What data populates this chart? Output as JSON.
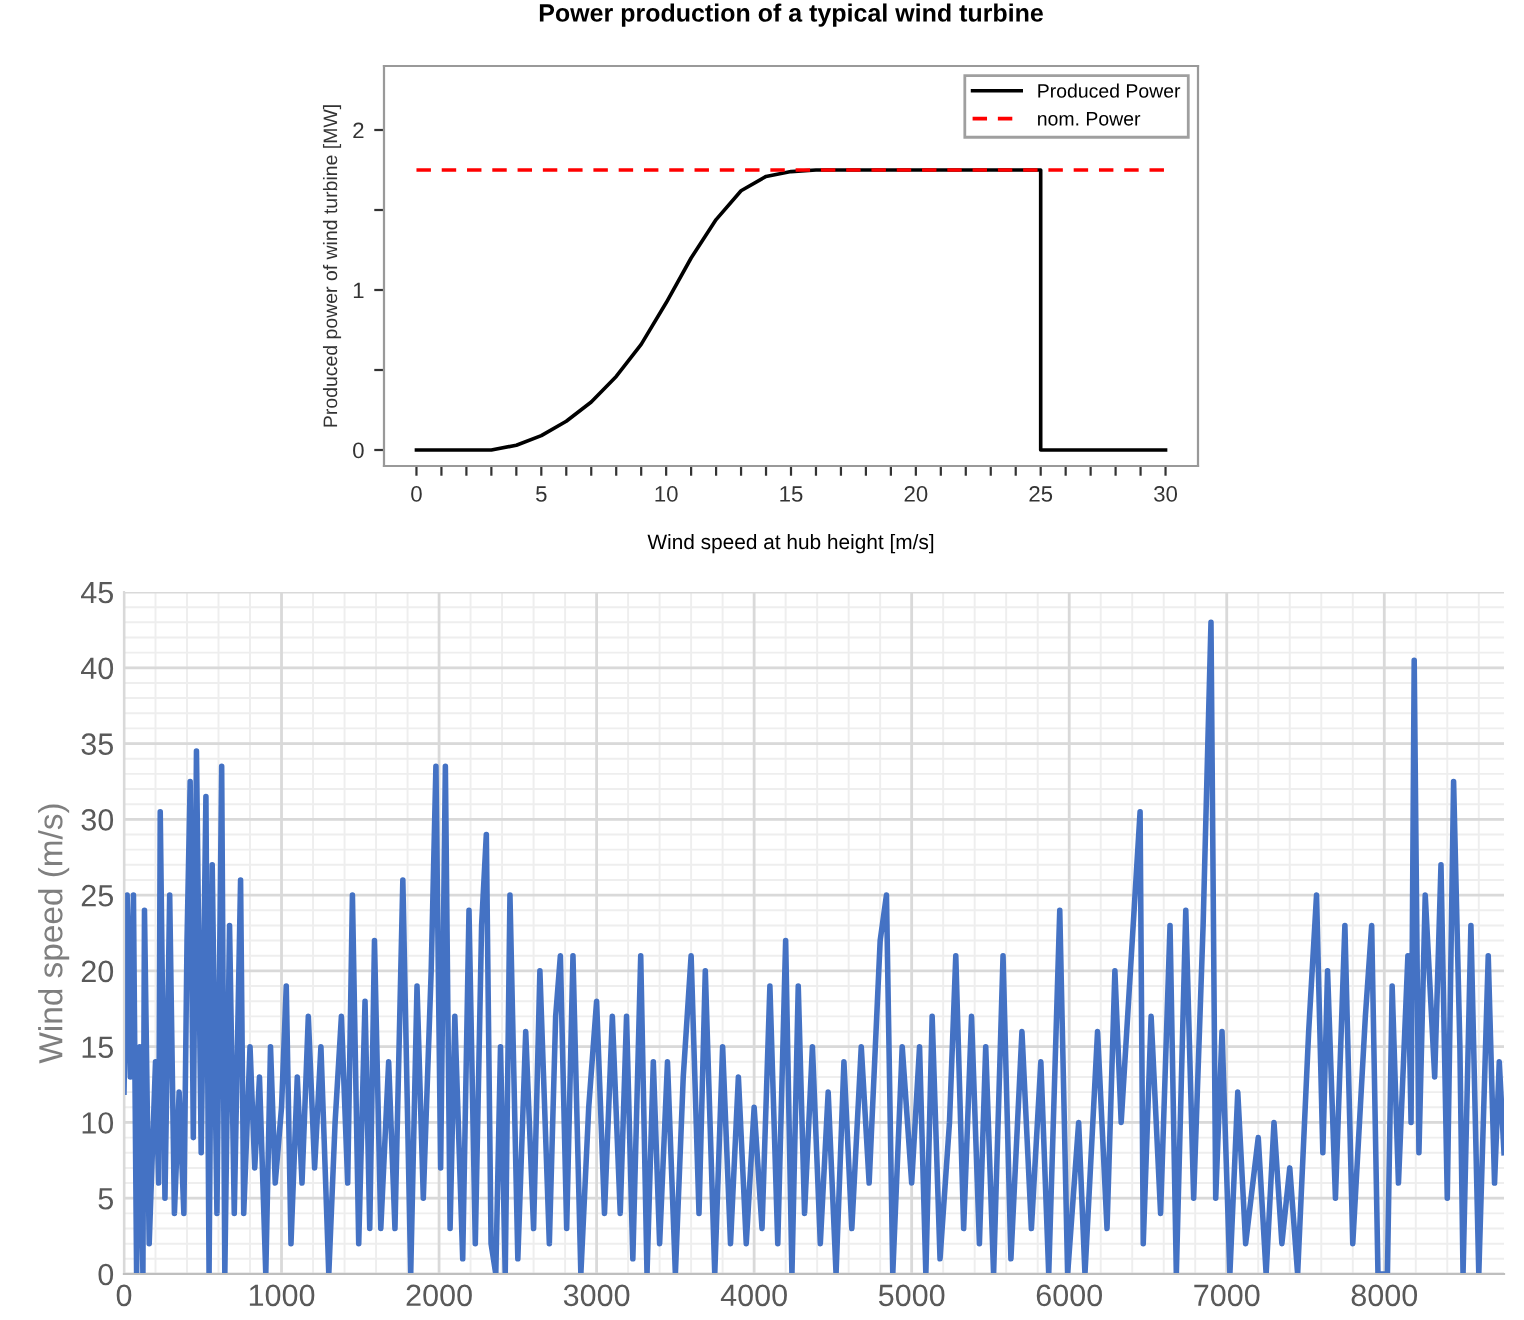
{
  "chart_data": [
    {
      "type": "line",
      "title": "Power production of a typical wind turbine",
      "xlabel": "Wind speed at hub height [m/s]",
      "ylabel": "Produced power of wind turbine [MW]",
      "series": [
        {
          "name": "Produced Power",
          "color": "#000000",
          "x": [
            0,
            3,
            4,
            5,
            6,
            7,
            8,
            9,
            10,
            11,
            12,
            13,
            14,
            15,
            16,
            25,
            25,
            30
          ],
          "values": [
            0,
            0,
            0.03,
            0.09,
            0.18,
            0.3,
            0.46,
            0.66,
            0.92,
            1.2,
            1.44,
            1.62,
            1.71,
            1.74,
            1.75,
            1.75,
            0,
            0
          ],
          "line_style": "solid"
        },
        {
          "name": "nom. Power",
          "color": "#ff0000",
          "x": [
            0,
            30
          ],
          "values": [
            1.75,
            1.75
          ],
          "line_style": "dashed"
        }
      ],
      "xlim": [
        -1.3,
        31.3
      ],
      "ylim": [
        -0.1,
        2.4
      ],
      "xticks": [
        0,
        {
          "value": 1,
          "label": null
        },
        {
          "value": 2,
          "label": null
        },
        {
          "value": 3,
          "label": null
        },
        {
          "value": 4,
          "label": null
        },
        5,
        {
          "value": 6,
          "label": null
        },
        {
          "value": 7,
          "label": null
        },
        {
          "value": 8,
          "label": null
        },
        {
          "value": 9,
          "label": null
        },
        10,
        {
          "value": 11,
          "label": null
        },
        {
          "value": 12,
          "label": null
        },
        {
          "value": 13,
          "label": null
        },
        {
          "value": 14,
          "label": null
        },
        15,
        {
          "value": 16,
          "label": null
        },
        {
          "value": 17,
          "label": null
        },
        {
          "value": 18,
          "label": null
        },
        {
          "value": 19,
          "label": null
        },
        20,
        {
          "value": 21,
          "label": null
        },
        {
          "value": 22,
          "label": null
        },
        {
          "value": 23,
          "label": null
        },
        {
          "value": 24,
          "label": null
        },
        25,
        {
          "value": 26,
          "label": null
        },
        {
          "value": 27,
          "label": null
        },
        {
          "value": 28,
          "label": null
        },
        {
          "value": 29,
          "label": null
        },
        30
      ],
      "yticks": [
        0,
        {
          "value": 0.5,
          "label": null
        },
        1,
        {
          "value": 1.5,
          "label": null
        },
        2
      ],
      "grid": false,
      "legend": "top right"
    },
    {
      "type": "line",
      "ylabel": "Wind speed (m/s)",
      "series": [
        {
          "color": "#4472c4",
          "x": [
            0,
            20,
            40,
            60,
            80,
            100,
            120,
            130,
            160,
            200,
            220,
            230,
            260,
            290,
            320,
            350,
            380,
            400,
            420,
            440,
            460,
            490,
            520,
            540,
            560,
            590,
            620,
            640,
            670,
            700,
            740,
            760,
            800,
            830,
            860,
            900,
            930,
            960,
            1000,
            1030,
            1060,
            1100,
            1130,
            1170,
            1210,
            1250,
            1300,
            1340,
            1380,
            1420,
            1450,
            1490,
            1530,
            1560,
            1590,
            1630,
            1680,
            1720,
            1770,
            1820,
            1860,
            1900,
            1950,
            1980,
            2010,
            2040,
            2070,
            2100,
            2150,
            2190,
            2230,
            2270,
            2300,
            2330,
            2360,
            2390,
            2420,
            2450,
            2500,
            2550,
            2600,
            2640,
            2700,
            2740,
            2770,
            2810,
            2850,
            2900,
            2950,
            3000,
            3050,
            3100,
            3150,
            3190,
            3230,
            3280,
            3320,
            3360,
            3400,
            3450,
            3500,
            3550,
            3600,
            3650,
            3690,
            3750,
            3800,
            3850,
            3900,
            3950,
            4000,
            4050,
            4100,
            4150,
            4200,
            4240,
            4280,
            4320,
            4370,
            4420,
            4470,
            4520,
            4570,
            4620,
            4680,
            4730,
            4800,
            4840,
            4880,
            4940,
            5000,
            5050,
            5090,
            5130,
            5180,
            5240,
            5280,
            5330,
            5380,
            5430,
            5470,
            5520,
            5580,
            5630,
            5700,
            5760,
            5820,
            5870,
            5940,
            5990,
            6060,
            6100,
            6180,
            6240,
            6290,
            6330,
            6450,
            6470,
            6520,
            6580,
            6640,
            6680,
            6740,
            6790,
            6850,
            6900,
            6930,
            6970,
            7020,
            7070,
            7120,
            7200,
            7250,
            7300,
            7350,
            7400,
            7450,
            7520,
            7570,
            7610,
            7640,
            7690,
            7750,
            7800,
            7880,
            7920,
            7960,
            8020,
            8050,
            8090,
            8150,
            8170,
            8190,
            8220,
            8260,
            8320,
            8360,
            8400,
            8440,
            8480,
            8500,
            8550,
            8600,
            8660,
            8700,
            8730,
            8760
          ],
          "values": [
            12,
            25,
            13,
            25,
            0,
            15,
            0,
            24,
            2,
            14,
            6,
            30.5,
            5,
            25,
            4,
            12,
            4,
            22,
            32.5,
            9,
            34.5,
            8,
            31.5,
            0,
            27,
            4,
            33.5,
            0,
            23,
            4,
            26,
            4,
            15,
            7,
            13,
            0,
            15,
            6,
            11,
            19,
            2,
            13,
            6,
            17,
            7,
            15,
            0,
            10,
            17,
            6,
            25,
            2,
            18,
            3,
            22,
            3,
            14,
            3,
            26,
            0,
            19,
            5,
            20,
            33.5,
            7,
            33.5,
            3,
            17,
            1,
            24,
            2,
            23,
            29,
            2,
            0,
            15,
            0,
            25,
            1,
            16,
            3,
            20,
            2,
            17,
            21,
            3,
            21,
            0,
            11,
            18,
            4,
            17,
            4,
            17,
            1,
            21,
            0,
            14,
            2,
            14,
            0,
            13,
            21,
            4,
            20,
            0,
            15,
            2,
            13,
            2,
            11,
            3,
            19,
            2,
            22,
            0,
            19,
            4,
            15,
            2,
            12,
            0,
            14,
            3,
            15,
            6,
            22,
            25,
            0,
            15,
            6,
            15,
            0,
            17,
            1,
            10,
            21,
            3,
            17,
            2,
            15,
            0,
            21,
            1,
            16,
            3,
            14,
            0,
            24,
            0,
            10,
            0,
            16,
            3,
            20,
            10,
            30.5,
            2,
            17,
            4,
            23,
            0,
            24,
            5,
            23,
            43,
            5,
            16,
            0,
            12,
            2,
            9,
            0,
            10,
            2,
            7,
            0,
            16,
            25,
            8,
            20,
            5,
            23,
            2,
            17,
            23,
            0,
            0,
            19,
            6,
            21,
            10,
            40.5,
            8,
            25,
            13,
            27,
            5,
            32.5,
            15,
            0,
            23,
            0,
            21,
            6,
            14,
            8
          ]
        }
      ],
      "xlim": [
        0,
        8760
      ],
      "ylim": [
        0,
        45
      ],
      "xticks": [
        0,
        1000,
        2000,
        3000,
        4000,
        5000,
        6000,
        7000,
        8000
      ],
      "yticks": [
        0,
        5,
        10,
        15,
        20,
        25,
        30,
        35,
        40,
        45
      ],
      "grid": true
    }
  ]
}
